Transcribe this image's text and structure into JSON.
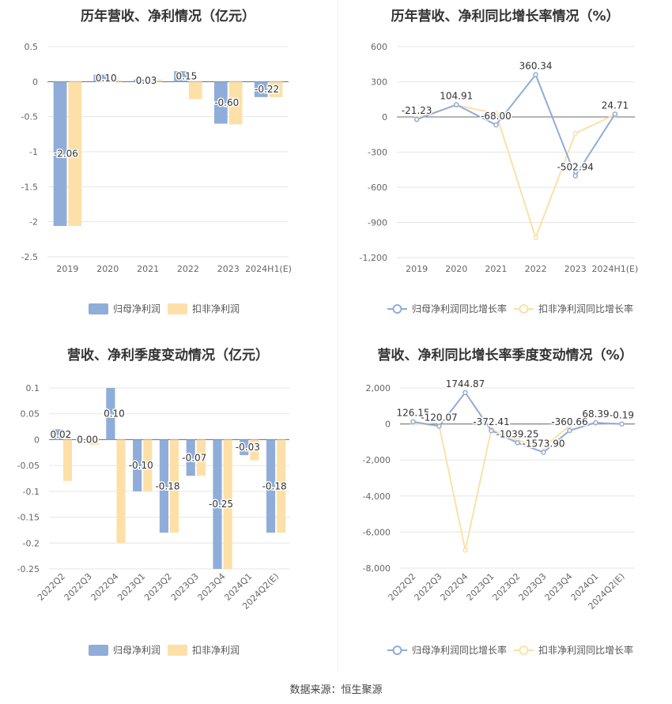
{
  "footer": "数据来源：恒生聚源",
  "chart_data": [
    {
      "id": "p1",
      "type": "bar",
      "title": "历年营收、净利情况（亿元）",
      "categories": [
        "2019",
        "2020",
        "2021",
        "2022",
        "2023",
        "2024H1(E)"
      ],
      "ylim": [
        -2.5,
        0.5
      ],
      "yticks": [
        0.5,
        0,
        -0.5,
        -1,
        -1.5,
        -2,
        -2.5
      ],
      "ytick_labels": [
        "0.5",
        "0",
        "-0.5",
        "-1",
        "-1.5",
        "-2",
        "-2.5"
      ],
      "grid": true,
      "legend_position": "bottom-center",
      "series": [
        {
          "name": "归母净利润",
          "color": "#8fadd8",
          "values": [
            -2.06,
            0.1,
            0.03,
            0.15,
            -0.6,
            -0.22
          ],
          "labels": [
            "-2.06",
            "0.10",
            "0.03",
            "0.15",
            "-0.60",
            "-0.22"
          ]
        },
        {
          "name": "扣非净利润",
          "color": "#fde0a8",
          "values": [
            -2.06,
            0.02,
            0.03,
            -0.25,
            -0.61,
            -0.22
          ]
        }
      ]
    },
    {
      "id": "p2",
      "type": "line",
      "title": "历年营收、净利同比增长率情况（%）",
      "categories": [
        "2019",
        "2020",
        "2021",
        "2022",
        "2023",
        "2024H1(E)"
      ],
      "ylim": [
        -1200,
        600
      ],
      "yticks": [
        600,
        300,
        0,
        -300,
        -600,
        -900,
        -1200
      ],
      "ytick_labels": [
        "600",
        "300",
        "0",
        "-300",
        "-600",
        "-900",
        "-1,200"
      ],
      "grid": true,
      "legend_position": "bottom-center",
      "series": [
        {
          "name": "归母净利润同比增长率",
          "color": "#8fadd8",
          "values": [
            -21.23,
            104.91,
            -68.0,
            360.34,
            -502.94,
            24.71
          ],
          "labels": [
            "-21.23",
            "104.91",
            "-68.00",
            "360.34",
            "-502.94",
            "24.71"
          ]
        },
        {
          "name": "扣非净利润同比增长率",
          "color": "#fde0a8",
          "values": [
            -10,
            100,
            30,
            -1030,
            -140,
            20
          ]
        }
      ]
    },
    {
      "id": "p3",
      "type": "bar",
      "title": "营收、净利季度变动情况（亿元）",
      "categories": [
        "2022Q2",
        "2022Q3",
        "2022Q4",
        "2023Q1",
        "2023Q2",
        "2023Q3",
        "2023Q4",
        "2024Q1",
        "2024Q2(E)"
      ],
      "ylim": [
        -0.25,
        0.1
      ],
      "yticks": [
        0.1,
        0.05,
        0,
        -0.05,
        -0.1,
        -0.15,
        -0.2,
        -0.25
      ],
      "ytick_labels": [
        "0.1",
        "0.05",
        "0",
        "-0.05",
        "-0.1",
        "-0.15",
        "-0.2",
        "-0.25"
      ],
      "grid": true,
      "legend_position": "bottom-center",
      "series": [
        {
          "name": "归母净利润",
          "color": "#8fadd8",
          "values": [
            0.02,
            0.0,
            0.1,
            -0.1,
            -0.18,
            -0.07,
            -0.25,
            -0.03,
            -0.18
          ],
          "labels": [
            "0.02",
            "0.00",
            "0.10",
            "-0.10",
            "-0.18",
            "-0.07",
            "-0.25",
            "-0.03",
            "-0.18"
          ]
        },
        {
          "name": "扣非净利润",
          "color": "#fde0a8",
          "values": [
            -0.08,
            -0.01,
            -0.2,
            -0.1,
            -0.18,
            -0.07,
            -0.25,
            -0.04,
            -0.18
          ]
        }
      ]
    },
    {
      "id": "p4",
      "type": "line",
      "title": "营收、净利同比增长率季度变动情况（%）",
      "categories": [
        "2022Q2",
        "2022Q3",
        "2022Q4",
        "2023Q1",
        "2023Q2",
        "2023Q3",
        "2023Q4",
        "2024Q1",
        "2024Q2(E)"
      ],
      "ylim": [
        -8000,
        2000
      ],
      "yticks": [
        2000,
        0,
        -2000,
        -4000,
        -6000,
        -8000
      ],
      "ytick_labels": [
        "2,000",
        "0",
        "-2,000",
        "-4,000",
        "-6,000",
        "-8,000"
      ],
      "grid": true,
      "legend_position": "bottom-center",
      "series": [
        {
          "name": "归母净利润同比增长率",
          "color": "#8fadd8",
          "values": [
            126.15,
            -120.07,
            1744.87,
            -372.41,
            -1039.25,
            -1573.9,
            -360.66,
            68.39,
            -0.19
          ],
          "labels": [
            "126.15",
            "-120.07",
            "1744.87",
            "-372.41",
            "-1039.25",
            "-1573.90",
            "-360.66",
            "68.39",
            "-0.19"
          ]
        },
        {
          "name": "扣非净利润同比增长率",
          "color": "#fde0a8",
          "values": [
            50,
            -100,
            -7000,
            -300,
            -900,
            -1300,
            -100,
            60,
            0
          ]
        }
      ]
    }
  ]
}
